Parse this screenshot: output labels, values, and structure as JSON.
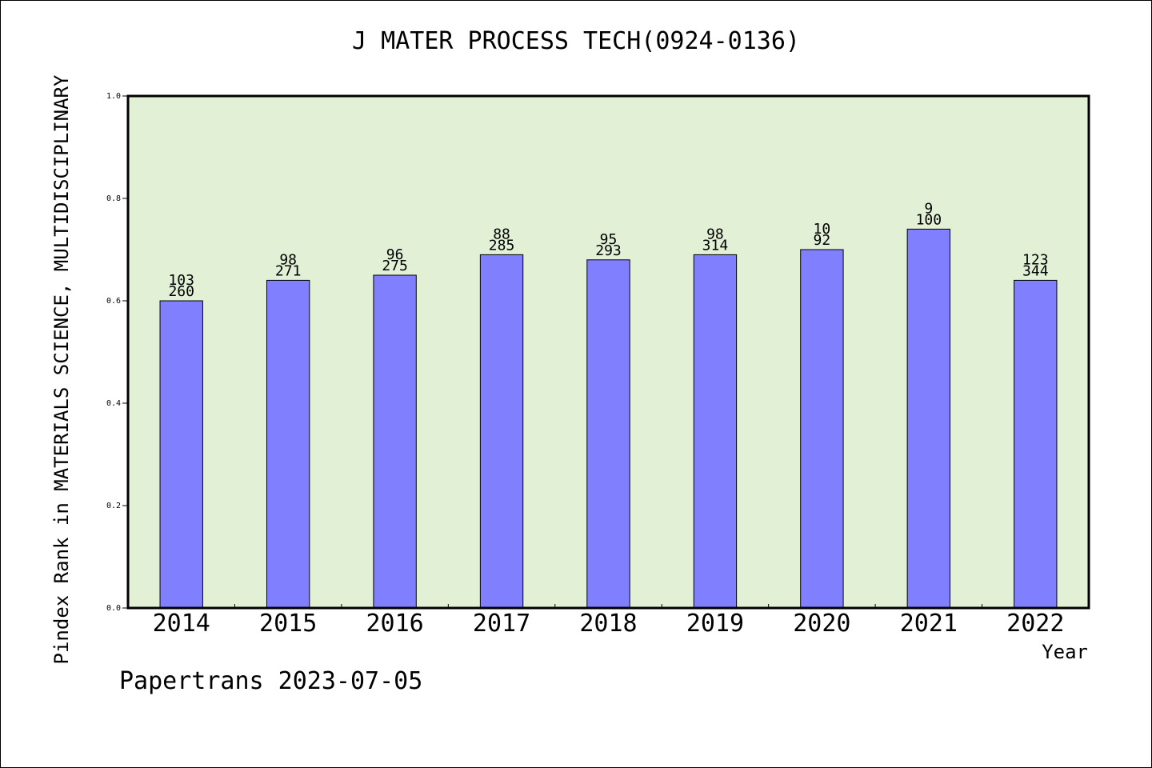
{
  "footer_text": "Papertrans 2023-07-05",
  "colors": {
    "plot_background": "#e2f0d6",
    "bar_fill": "#8080ff",
    "bar_stroke": "#000000",
    "frame": "#000000"
  },
  "chart_data": {
    "type": "bar",
    "title": "J MATER PROCESS TECH(0924-0136)",
    "xlabel": "Year",
    "ylabel": "Pindex Rank in MATERIALS SCIENCE, MULTIDISCIPLINARY",
    "ylim": [
      0.0,
      1.0
    ],
    "yticks": [
      "0.0",
      "0.2",
      "0.4",
      "0.6",
      "0.8",
      "1.0"
    ],
    "grid": false,
    "categories": [
      "2014",
      "2015",
      "2016",
      "2017",
      "2018",
      "2019",
      "2020",
      "2021",
      "2022"
    ],
    "values": [
      0.6,
      0.64,
      0.65,
      0.69,
      0.68,
      0.69,
      0.7,
      0.74,
      0.64
    ],
    "annotations_rank": [
      "103",
      "98",
      "96",
      "88",
      "95",
      "98",
      "10",
      "9",
      "123"
    ],
    "annotations_total": [
      "260",
      "271",
      "275",
      "285",
      "293",
      "314",
      "92",
      "100",
      "344"
    ]
  }
}
